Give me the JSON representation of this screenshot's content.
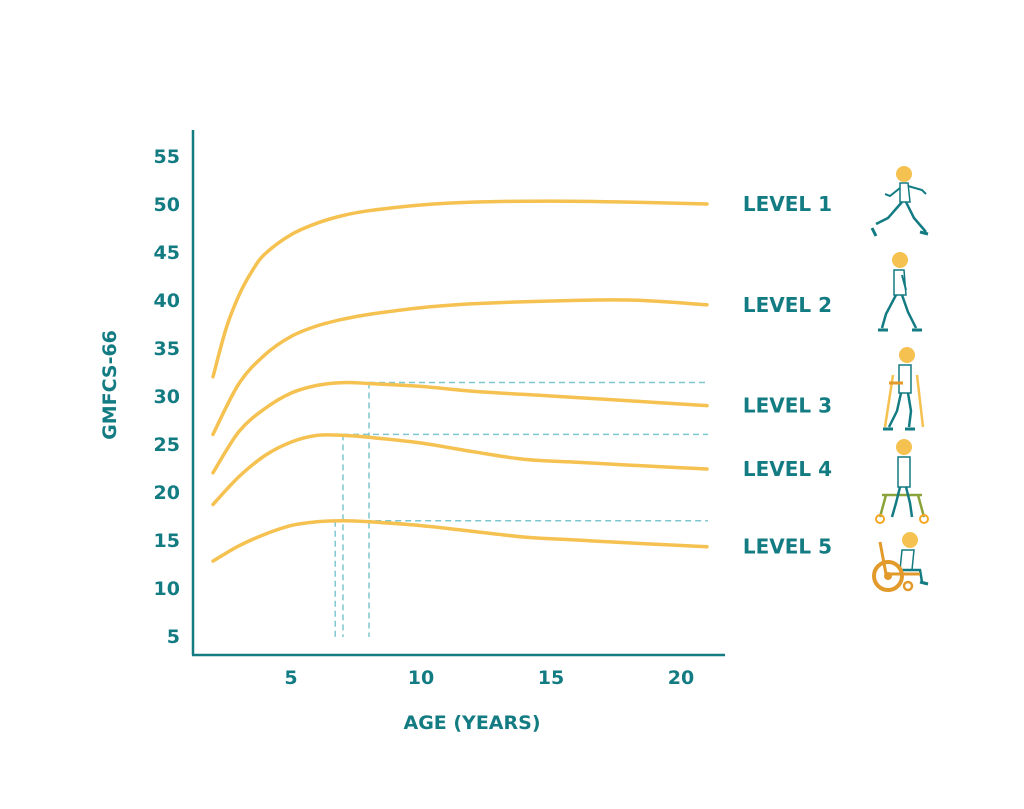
{
  "chart_data": {
    "type": "line",
    "title": "",
    "xlabel": "AGE (YEARS)",
    "ylabel": "GMFCS-66",
    "xlim": [
      1.2,
      21.9
    ],
    "ylim": [
      3,
      57
    ],
    "x_ticks": [
      5,
      10,
      15,
      20
    ],
    "y_ticks": [
      5,
      10,
      15,
      20,
      25,
      30,
      35,
      40,
      45,
      50,
      55
    ],
    "grid": false,
    "legend": "labels at right end of each line",
    "series": [
      {
        "name": "LEVEL 1",
        "points": [
          [
            2,
            32
          ],
          [
            2.5,
            37
          ],
          [
            3,
            40.5
          ],
          [
            3.5,
            43
          ],
          [
            4,
            44.8
          ],
          [
            5,
            46.8
          ],
          [
            6,
            48
          ],
          [
            7,
            48.8
          ],
          [
            8,
            49.3
          ],
          [
            10,
            49.9
          ],
          [
            12,
            50.2
          ],
          [
            15,
            50.3
          ],
          [
            18,
            50.2
          ],
          [
            21,
            50
          ]
        ]
      },
      {
        "name": "LEVEL 2",
        "points": [
          [
            2,
            26
          ],
          [
            3,
            31.3
          ],
          [
            4,
            34.3
          ],
          [
            5,
            36.2
          ],
          [
            6,
            37.3
          ],
          [
            7,
            38
          ],
          [
            8,
            38.5
          ],
          [
            10,
            39.2
          ],
          [
            12,
            39.6
          ],
          [
            15,
            39.9
          ],
          [
            18,
            40
          ],
          [
            21,
            39.5
          ]
        ]
      },
      {
        "name": "LEVEL 3",
        "points": [
          [
            2,
            22
          ],
          [
            3,
            26.3
          ],
          [
            4,
            28.7
          ],
          [
            5,
            30.3
          ],
          [
            6,
            31.1
          ],
          [
            7,
            31.4
          ],
          [
            8,
            31.3
          ],
          [
            10,
            31
          ],
          [
            12,
            30.5
          ],
          [
            15,
            30
          ],
          [
            18,
            29.5
          ],
          [
            21,
            29
          ]
        ]
      },
      {
        "name": "LEVEL 4",
        "points": [
          [
            2,
            18.7
          ],
          [
            3,
            21.6
          ],
          [
            4,
            23.8
          ],
          [
            5,
            25.2
          ],
          [
            6,
            25.9
          ],
          [
            7,
            25.9
          ],
          [
            8,
            25.7
          ],
          [
            10,
            25.1
          ],
          [
            12,
            24.2
          ],
          [
            14,
            23.4
          ],
          [
            16,
            23.1
          ],
          [
            18,
            22.8
          ],
          [
            21,
            22.4
          ]
        ]
      },
      {
        "name": "LEVEL 5",
        "points": [
          [
            2,
            12.8
          ],
          [
            3,
            14.4
          ],
          [
            4,
            15.6
          ],
          [
            5,
            16.5
          ],
          [
            6,
            16.9
          ],
          [
            7,
            17
          ],
          [
            8,
            16.9
          ],
          [
            10,
            16.5
          ],
          [
            12,
            15.9
          ],
          [
            14,
            15.3
          ],
          [
            16,
            15
          ],
          [
            18,
            14.7
          ],
          [
            21,
            14.3
          ]
        ]
      }
    ],
    "reference_lines": [
      {
        "x": 6.7,
        "y": 17
      },
      {
        "x": 7,
        "y": 26
      },
      {
        "x": 8,
        "y": 31.4
      }
    ],
    "colors": {
      "line": "#f5c150",
      "axis": "#137b82",
      "text": "#137b82",
      "reference": "#7fc7cf"
    }
  },
  "icons": [
    "running-child-icon",
    "walking-child-icon",
    "crutches-child-icon",
    "walker-child-icon",
    "wheelchair-child-icon"
  ]
}
